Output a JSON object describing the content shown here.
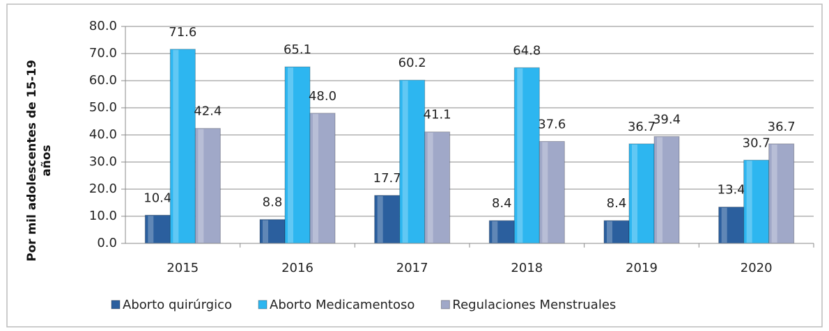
{
  "chart_data": {
    "type": "bar",
    "y_label": "Por mil adolescentes de 15-19 años",
    "categories": [
      "2015",
      "2016",
      "2017",
      "2018",
      "2019",
      "2020"
    ],
    "series": [
      {
        "name": "Aborto quirúrgico",
        "color": "#2b5f9e",
        "values": [
          10.4,
          8.8,
          17.7,
          8.4,
          8.4,
          13.4
        ],
        "value_labels": [
          "10.4",
          "8.8",
          "17.7",
          "8.4",
          "8.4",
          "13.4"
        ]
      },
      {
        "name": "Aborto Medicamentoso",
        "color": "#2db6f0",
        "values": [
          71.6,
          65.1,
          60.2,
          64.8,
          36.7,
          30.7
        ],
        "value_labels": [
          "71.6",
          "65.1",
          "60.2",
          "64.8",
          "36.7",
          "30.7"
        ]
      },
      {
        "name": "Regulaciones Menstruales",
        "color": "#a0a8c8",
        "values": [
          42.4,
          48.0,
          41.1,
          37.6,
          39.4,
          36.7
        ],
        "value_labels": [
          "42.4",
          "48.0",
          "41.1",
          "37.6",
          "39.4",
          "36.7"
        ]
      }
    ],
    "ylim": [
      0,
      80
    ],
    "yticks": [
      {
        "value": 0,
        "label": "0.0"
      },
      {
        "value": 10,
        "label": "10.0"
      },
      {
        "value": 20,
        "label": "20.0"
      },
      {
        "value": 30,
        "label": "30.0"
      },
      {
        "value": 40,
        "label": "40.0"
      },
      {
        "value": 50,
        "label": "50.0"
      },
      {
        "value": 60,
        "label": "60.0"
      },
      {
        "value": 70,
        "label": "70.0"
      },
      {
        "value": 80,
        "label": "80.0"
      }
    ],
    "grid": true
  }
}
